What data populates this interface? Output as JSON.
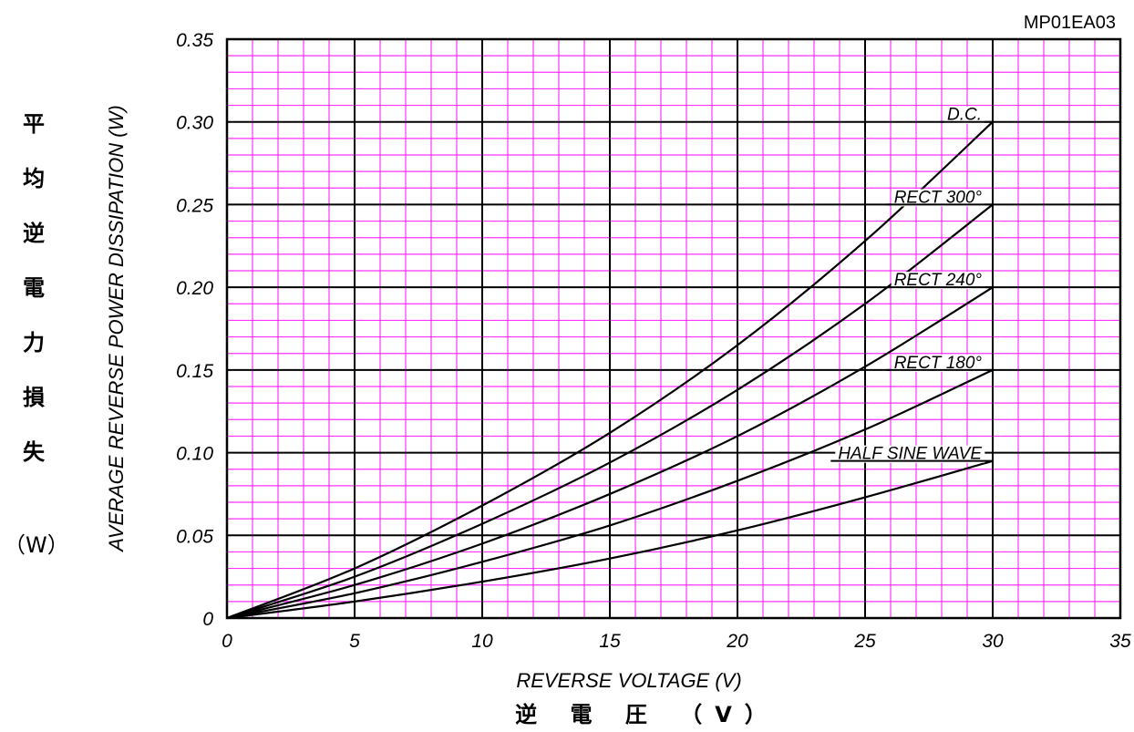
{
  "chart_data": {
    "type": "line",
    "code": "MP01EA03",
    "xlabel": "REVERSE VOLTAGE (V)",
    "xlabel_ja": "逆 電 圧 （V）",
    "ylabel": "AVERAGE REVERSE POWER DISSIPATION (W)",
    "ylabel_ja": [
      "平",
      "均",
      "逆",
      "電",
      "力",
      "損",
      "失"
    ],
    "ylabel_ja_unit": "（W）",
    "xlim": [
      0,
      35
    ],
    "ylim": [
      0,
      0.35
    ],
    "xticks": [
      "0",
      "5",
      "10",
      "15",
      "20",
      "25",
      "30",
      "35"
    ],
    "yticks": [
      "0",
      "0.05",
      "0.10",
      "0.15",
      "0.20",
      "0.25",
      "0.30",
      "0.35"
    ],
    "grid": true,
    "series": [
      {
        "name": "D.C.",
        "x": [
          0,
          5,
          10,
          15,
          20,
          25,
          30
        ],
        "y": [
          0,
          0.03,
          0.068,
          0.112,
          0.165,
          0.228,
          0.3
        ]
      },
      {
        "name": "RECT 300°",
        "x": [
          0,
          5,
          10,
          15,
          20,
          25,
          30
        ],
        "y": [
          0,
          0.025,
          0.057,
          0.094,
          0.138,
          0.19,
          0.25
        ]
      },
      {
        "name": "RECT 240°",
        "x": [
          0,
          5,
          10,
          15,
          20,
          25,
          30
        ],
        "y": [
          0,
          0.02,
          0.045,
          0.075,
          0.11,
          0.152,
          0.2
        ]
      },
      {
        "name": "RECT 180°",
        "x": [
          0,
          5,
          10,
          15,
          20,
          25,
          30
        ],
        "y": [
          0,
          0.015,
          0.034,
          0.056,
          0.083,
          0.114,
          0.15
        ]
      },
      {
        "name": "HALF SINE WAVE",
        "x": [
          0,
          5,
          10,
          15,
          20,
          25,
          30
        ],
        "y": [
          0,
          0.01,
          0.022,
          0.036,
          0.053,
          0.073,
          0.095
        ]
      }
    ],
    "colors": {
      "grid_minor": "#ff33ff",
      "grid_major": "#000000",
      "line": "#000000"
    }
  }
}
